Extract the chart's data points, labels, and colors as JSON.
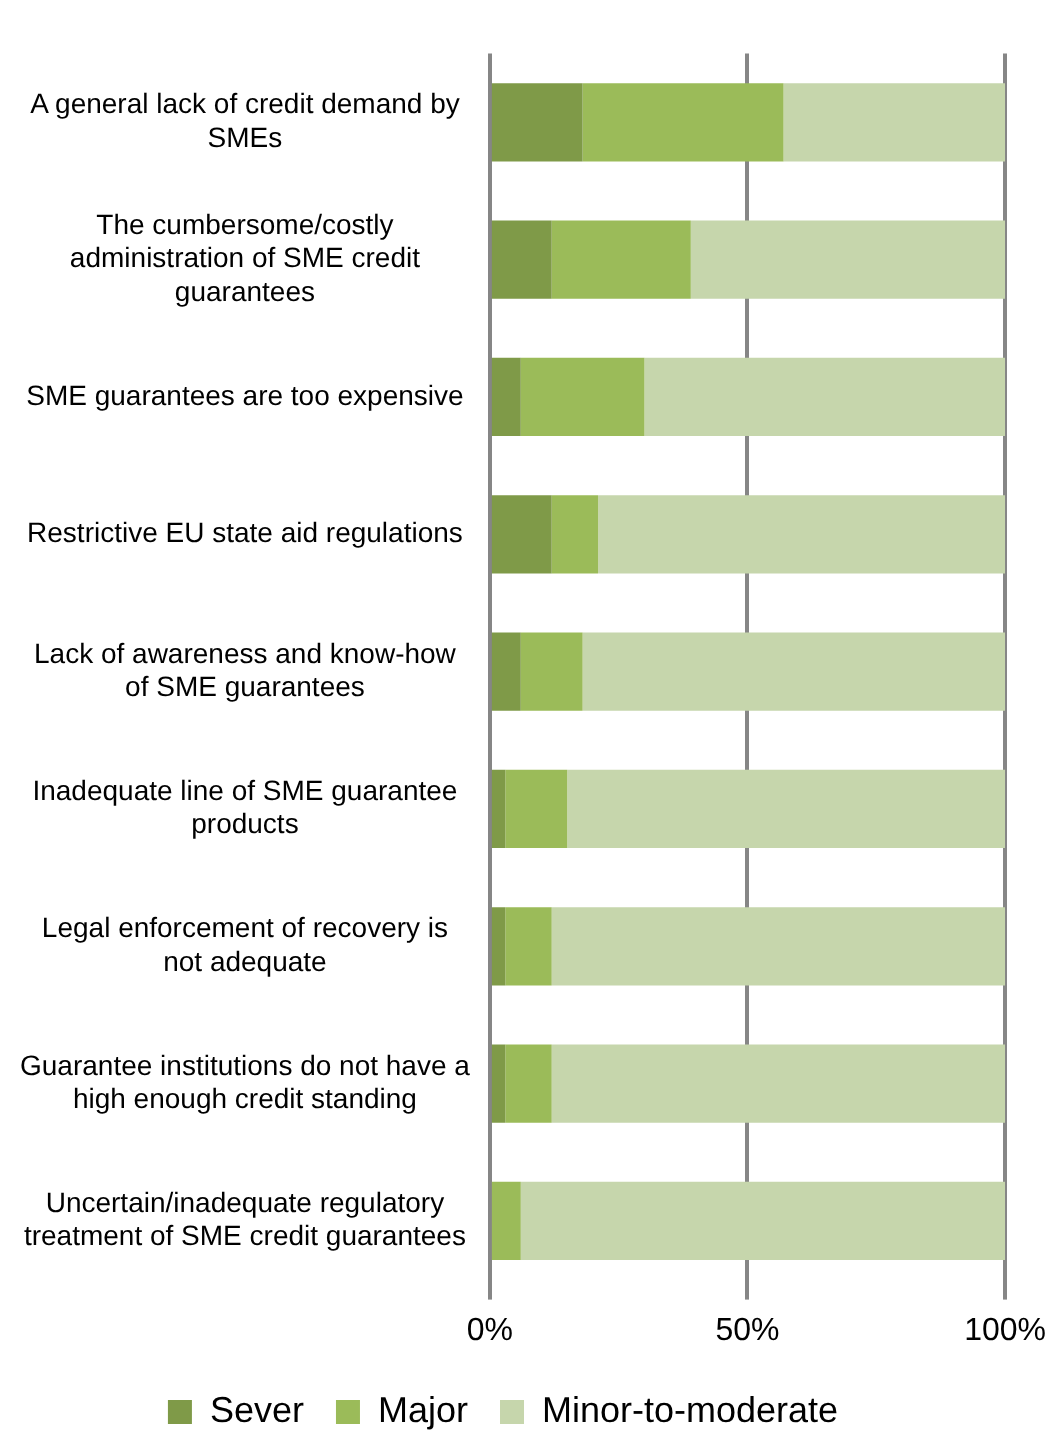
{
  "chart_data": {
    "type": "bar",
    "orientation": "horizontal",
    "stacked": true,
    "categories": [
      "A general lack of credit demand by SMEs",
      "The cumbersome/costly administration of SME credit guarantees",
      "SME guarantees are too expensive",
      "Restrictive EU state aid regulations",
      "Lack of awareness and know-how of SME guarantees",
      "Inadequate line of SME guarantee products",
      "Legal enforcement of recovery is not adequate",
      "Guarantee institutions do not have a high enough credit standing",
      "Uncertain/inadequate regulatory treatment of SME credit guarantees"
    ],
    "series": [
      {
        "name": "Sever",
        "color": "#7f9a48",
        "values": [
          18,
          12,
          6,
          12,
          6,
          3,
          3,
          3,
          0
        ]
      },
      {
        "name": "Major",
        "color": "#9bbb59",
        "values": [
          39,
          27,
          24,
          9,
          12,
          12,
          9,
          9,
          6
        ]
      },
      {
        "name": "Minor-to-moderate",
        "color": "#c6d6ac",
        "values": [
          43,
          61,
          70,
          79,
          82,
          85,
          88,
          88,
          94
        ]
      }
    ],
    "xlim": [
      0,
      100
    ],
    "xticks": [
      {
        "value": 0,
        "label": "0%"
      },
      {
        "value": 50,
        "label": "50%"
      },
      {
        "value": 100,
        "label": "100%"
      }
    ],
    "grid": "x",
    "legend": "bottom"
  }
}
